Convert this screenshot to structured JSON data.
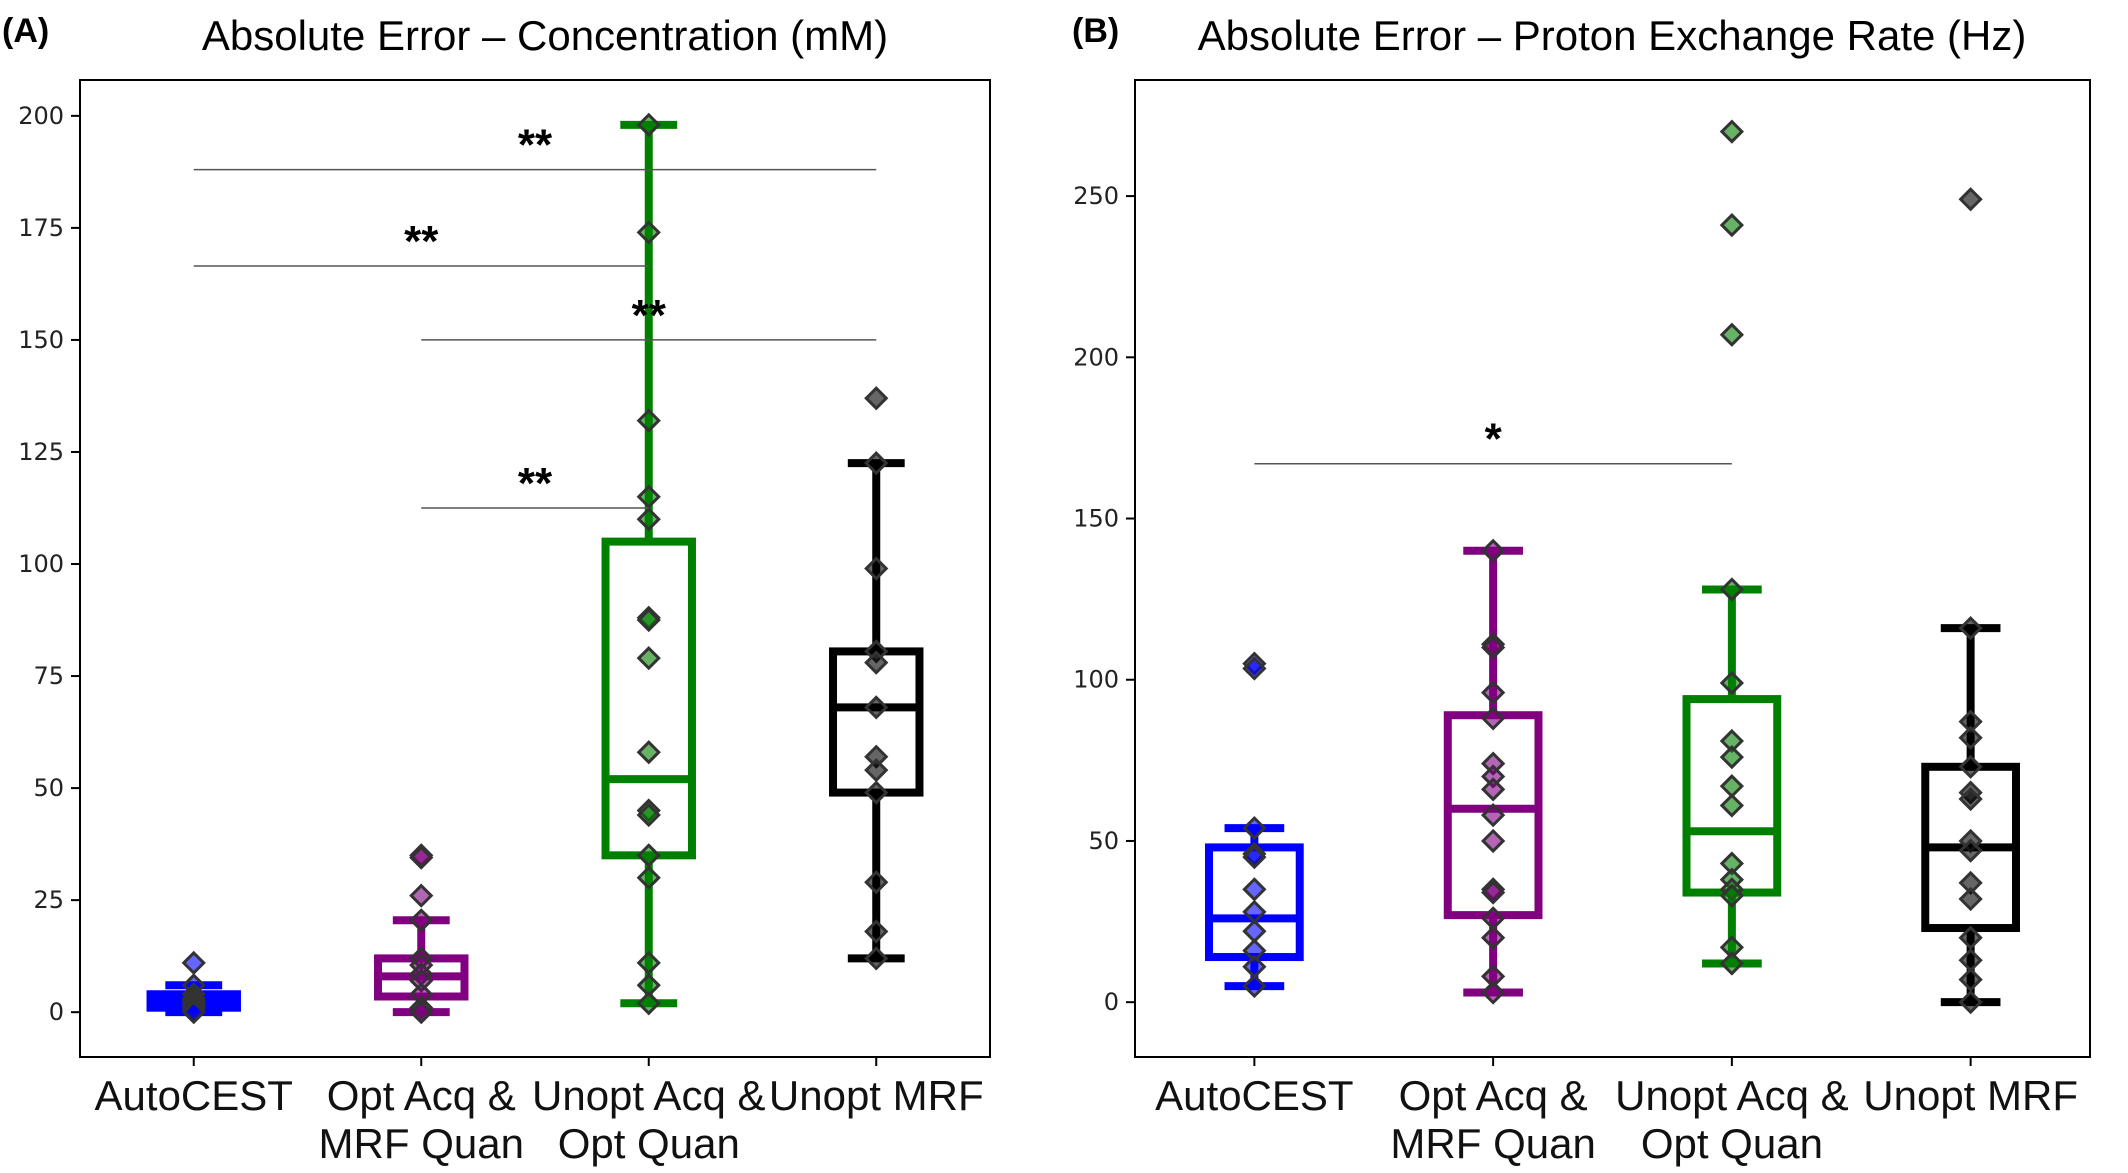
{
  "figure": {
    "colors": {
      "AutoCEST": "#0000ff",
      "Opt Acq & MRF Quan": "#800080",
      "Unopt Acq & Opt Quan": "#008000",
      "Unopt MRF": "#000000"
    }
  },
  "chart_data": [
    {
      "type": "box",
      "panel_label": "(A)",
      "title": "Absolute Error – Concentration (mM)",
      "xlabel": "",
      "ylabel": "",
      "ylim": [
        -10,
        208
      ],
      "yticks": [
        0,
        25,
        50,
        75,
        100,
        125,
        150,
        175,
        200
      ],
      "categories": [
        {
          "lines": [
            "AutoCEST"
          ],
          "key": "AutoCEST"
        },
        {
          "lines": [
            "Opt Acq &",
            "MRF Quan"
          ],
          "key": "Opt Acq & MRF Quan"
        },
        {
          "lines": [
            "Unopt Acq &",
            "Opt Quan"
          ],
          "key": "Unopt Acq & Opt Quan"
        },
        {
          "lines": [
            "Unopt MRF"
          ],
          "key": "Unopt MRF"
        }
      ],
      "boxes": [
        {
          "q1": 1,
          "median": 2.5,
          "q3": 4,
          "whisker_low": 0,
          "whisker_high": 6,
          "points": [
            11,
            6,
            4,
            3,
            2.5,
            2,
            1.5,
            1,
            0.5,
            0
          ]
        },
        {
          "q1": 3.5,
          "median": 8,
          "q3": 12,
          "whisker_low": 0,
          "whisker_high": 20.5,
          "points": [
            35,
            34.5,
            26,
            20.5,
            12,
            10.5,
            8.5,
            7,
            4,
            1,
            0
          ]
        },
        {
          "q1": 35,
          "median": 52,
          "q3": 105,
          "whisker_low": 2,
          "whisker_high": 198,
          "points": [
            198,
            174,
            132,
            115,
            110,
            88,
            87.5,
            79,
            58,
            45,
            44,
            35,
            30,
            11,
            6,
            2
          ]
        },
        {
          "q1": 49,
          "median": 68,
          "q3": 80.5,
          "whisker_low": 12,
          "whisker_high": 122.5,
          "points": [
            137,
            122.5,
            99,
            80.5,
            78,
            68,
            57,
            54,
            49,
            29,
            18,
            12
          ]
        }
      ],
      "significance": [
        {
          "label": "**",
          "from": 0,
          "to": 3,
          "y": 188
        },
        {
          "label": "**",
          "from": 0,
          "to": 2,
          "y": 166.5
        },
        {
          "label": "**",
          "from": 1,
          "to": 3,
          "y": 150
        },
        {
          "label": "**",
          "from": 1,
          "to": 2,
          "y": 112.5
        }
      ]
    },
    {
      "type": "box",
      "panel_label": "(B)",
      "title": "Absolute Error – Proton Exchange Rate (Hz)",
      "xlabel": "",
      "ylabel": "",
      "ylim": [
        -17,
        286
      ],
      "yticks": [
        0,
        50,
        100,
        150,
        200,
        250
      ],
      "categories": [
        {
          "lines": [
            "AutoCEST"
          ],
          "key": "AutoCEST"
        },
        {
          "lines": [
            "Opt Acq &",
            "MRF Quan"
          ],
          "key": "Opt Acq & MRF Quan"
        },
        {
          "lines": [
            "Unopt Acq &",
            "Opt Quan"
          ],
          "key": "Unopt Acq & Opt Quan"
        },
        {
          "lines": [
            "Unopt MRF"
          ],
          "key": "Unopt MRF"
        }
      ],
      "boxes": [
        {
          "q1": 14,
          "median": 26,
          "q3": 48,
          "whisker_low": 5,
          "whisker_high": 54,
          "points": [
            105,
            103.5,
            54,
            46,
            45,
            35,
            28,
            22,
            16,
            11,
            5
          ]
        },
        {
          "q1": 27,
          "median": 60,
          "q3": 89,
          "whisker_low": 3,
          "whisker_high": 140,
          "points": [
            140,
            111,
            110,
            96,
            88,
            74,
            70,
            66,
            58,
            50,
            35,
            34,
            26,
            20,
            8,
            3
          ]
        },
        {
          "q1": 34,
          "median": 53,
          "q3": 94,
          "whisker_low": 12,
          "whisker_high": 128,
          "points": [
            270,
            241,
            207,
            128,
            99,
            81,
            76,
            67,
            61,
            43,
            38,
            35,
            33,
            17,
            12
          ]
        },
        {
          "q1": 23,
          "median": 48,
          "q3": 73,
          "whisker_low": 0,
          "whisker_high": 116,
          "points": [
            249,
            116,
            87,
            82,
            73,
            65,
            63,
            50,
            47,
            37,
            32,
            20,
            13,
            7,
            0
          ]
        }
      ],
      "significance": [
        {
          "label": "*",
          "from": 0,
          "to": 2,
          "y": 167
        }
      ]
    }
  ]
}
